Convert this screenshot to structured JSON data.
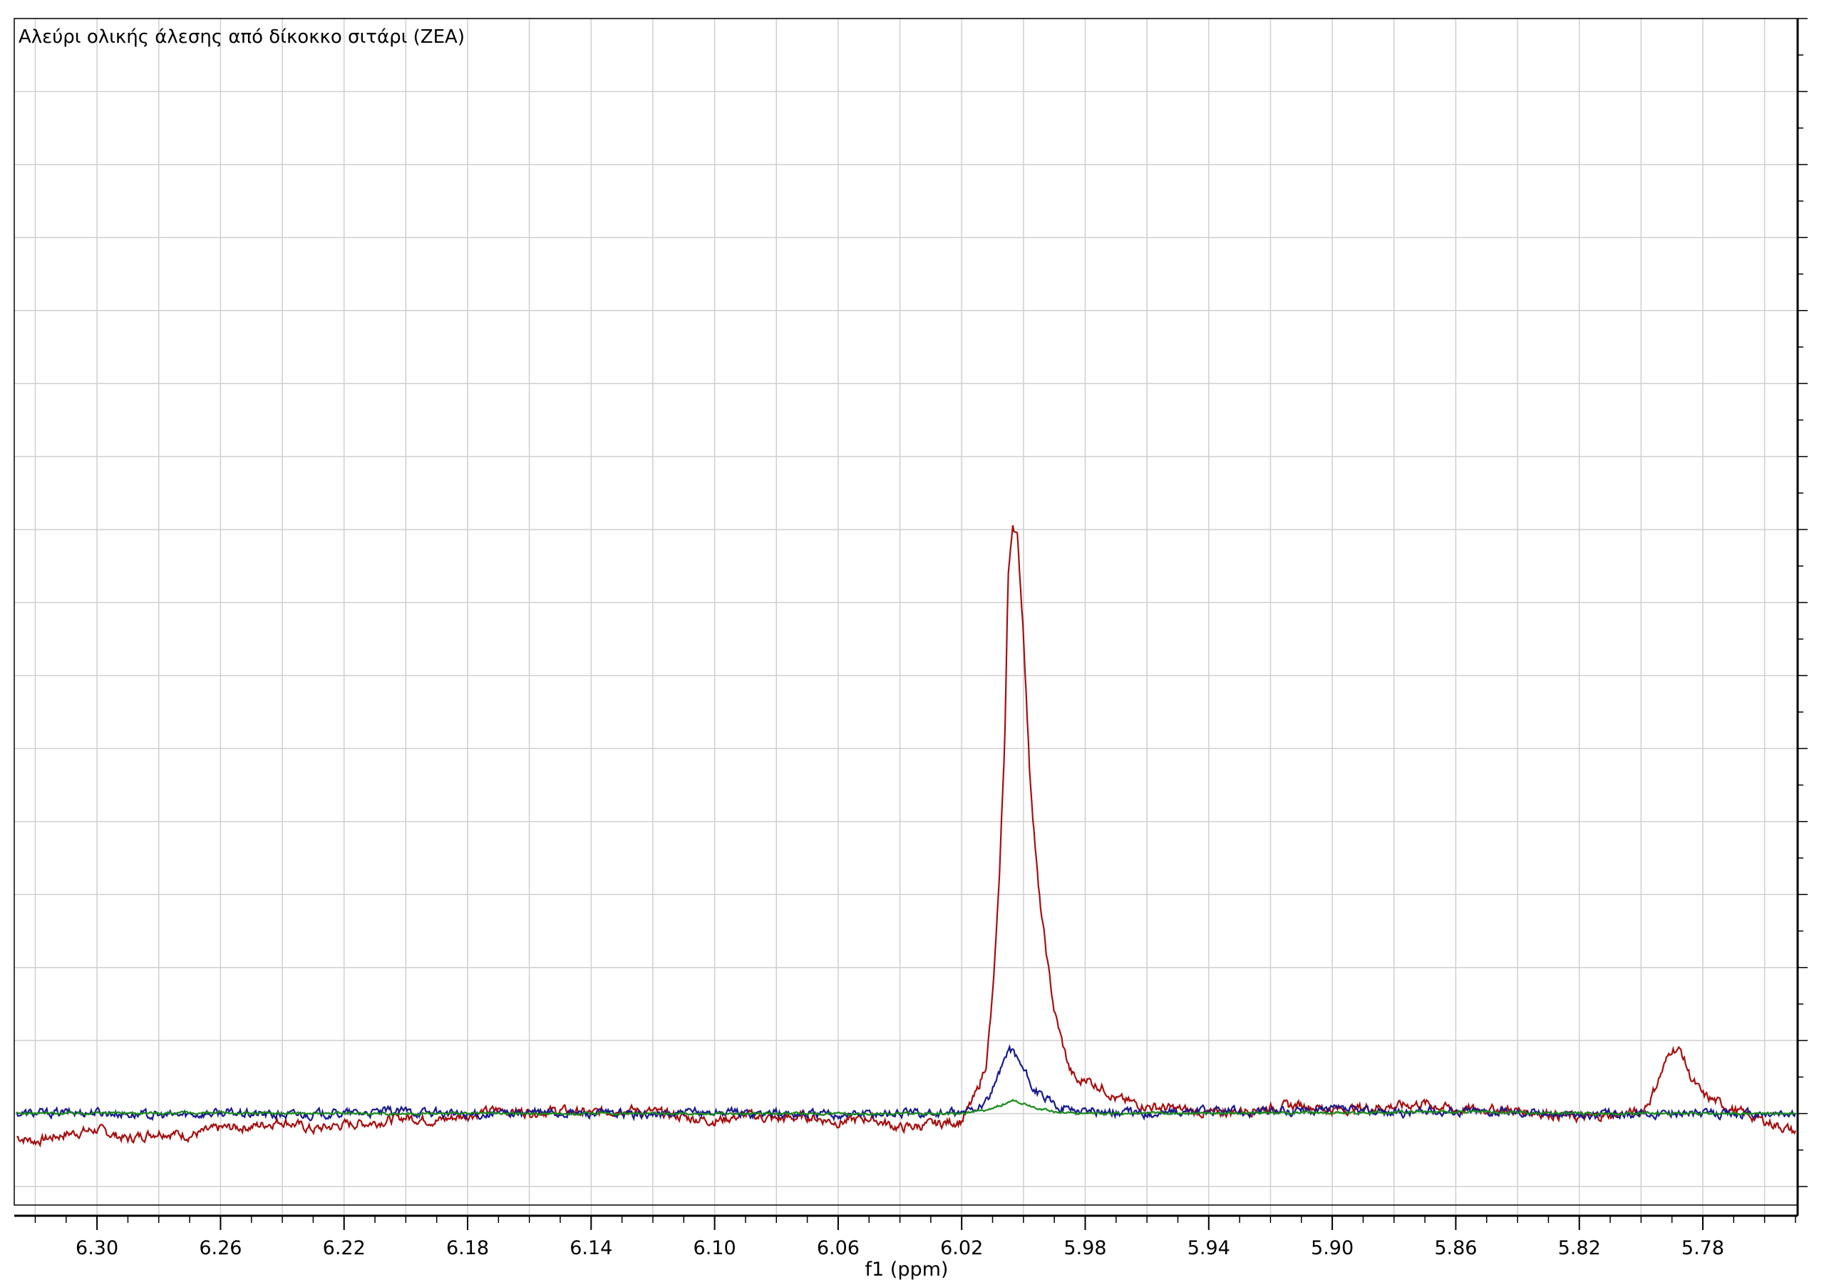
{
  "chart_data": {
    "type": "line",
    "title": "Αλεύρι ολικής άλεσης από δίκοκκο σιτάρι (ZEA)",
    "xlabel": "f1 (ppm)",
    "ylabel": "",
    "x_reversed": true,
    "xlim": [
      6.3268,
      5.7493
    ],
    "ylim": [
      -0.14,
      1.5
    ],
    "grid": true,
    "x_ticks": [
      "6.30",
      "6.26",
      "6.22",
      "6.18",
      "6.14",
      "6.10",
      "6.06",
      "6.02",
      "5.98",
      "5.94",
      "5.90",
      "5.86",
      "5.82",
      "5.78"
    ],
    "series": [
      {
        "color": "#a50f0f",
        "x": [
          6.326,
          6.32,
          6.31,
          6.3,
          6.29,
          6.28,
          6.27,
          6.26,
          6.25,
          6.24,
          6.23,
          6.22,
          6.21,
          6.2,
          6.19,
          6.18,
          6.17,
          6.16,
          6.15,
          6.14,
          6.13,
          6.12,
          6.11,
          6.1,
          6.09,
          6.08,
          6.07,
          6.06,
          6.05,
          6.04,
          6.03,
          6.02,
          6.018,
          6.015,
          6.012,
          6.01,
          6.008,
          6.006,
          6.005,
          6.0035,
          6.002,
          6.0,
          5.998,
          5.995,
          5.992,
          5.99,
          5.987,
          5.985,
          5.982,
          5.98,
          5.977,
          5.974,
          5.97,
          5.96,
          5.95,
          5.94,
          5.93,
          5.92,
          5.91,
          5.9,
          5.89,
          5.88,
          5.87,
          5.86,
          5.85,
          5.84,
          5.83,
          5.82,
          5.81,
          5.8,
          5.797,
          5.793,
          5.79,
          5.787,
          5.784,
          5.78,
          5.77,
          5.76,
          5.75
        ],
        "y": [
          -0.032,
          -0.038,
          -0.028,
          -0.022,
          -0.035,
          -0.025,
          -0.03,
          -0.02,
          -0.018,
          -0.01,
          -0.022,
          -0.015,
          -0.012,
          -0.005,
          -0.01,
          -0.002,
          0.005,
          0.002,
          0.004,
          0.0,
          0.006,
          0.002,
          -0.005,
          -0.01,
          -0.002,
          -0.008,
          -0.004,
          -0.012,
          -0.006,
          -0.02,
          -0.015,
          -0.01,
          0.005,
          0.03,
          0.07,
          0.16,
          0.3,
          0.52,
          0.73,
          0.81,
          0.79,
          0.66,
          0.47,
          0.3,
          0.2,
          0.14,
          0.09,
          0.06,
          0.04,
          0.05,
          0.04,
          0.035,
          0.02,
          0.01,
          0.006,
          0.0,
          0.004,
          0.008,
          0.012,
          0.005,
          0.008,
          0.01,
          0.014,
          0.005,
          0.006,
          0.004,
          0.0,
          -0.006,
          -0.002,
          0.002,
          0.02,
          0.06,
          0.09,
          0.085,
          0.05,
          0.025,
          0.005,
          -0.01,
          -0.025
        ]
      },
      {
        "color": "#1a1a8c",
        "x": [
          6.326,
          6.3,
          6.28,
          6.26,
          6.24,
          6.22,
          6.2,
          6.18,
          6.16,
          6.14,
          6.12,
          6.1,
          6.08,
          6.06,
          6.04,
          6.02,
          6.012,
          6.008,
          6.005,
          6.003,
          6.0,
          5.997,
          5.993,
          5.99,
          5.985,
          5.98,
          5.97,
          5.96,
          5.94,
          5.92,
          5.9,
          5.88,
          5.86,
          5.84,
          5.82,
          5.8,
          5.78,
          5.76,
          5.75
        ],
        "y": [
          0.0,
          0.002,
          -0.003,
          0.001,
          -0.002,
          0.0,
          0.003,
          -0.002,
          0.001,
          0.0,
          -0.002,
          0.002,
          0.0,
          -0.001,
          0.001,
          0.0,
          0.015,
          0.05,
          0.09,
          0.085,
          0.06,
          0.035,
          0.02,
          0.012,
          0.006,
          0.004,
          0.002,
          0.0,
          0.003,
          0.002,
          0.005,
          0.001,
          0.004,
          0.002,
          -0.002,
          0.001,
          0.0,
          -0.001,
          0.0
        ]
      },
      {
        "color": "#1a8c1a",
        "x": [
          6.326,
          6.3,
          6.2,
          6.1,
          6.02,
          6.012,
          6.006,
          6.003,
          6.0,
          5.995,
          5.99,
          5.98,
          5.9,
          5.86,
          5.82,
          5.8,
          5.75
        ],
        "y": [
          0.0,
          0.001,
          0.0,
          0.0,
          0.0,
          0.004,
          0.014,
          0.018,
          0.014,
          0.007,
          0.003,
          0.0,
          0.001,
          0.003,
          0.0,
          0.0,
          0.0
        ]
      }
    ]
  }
}
